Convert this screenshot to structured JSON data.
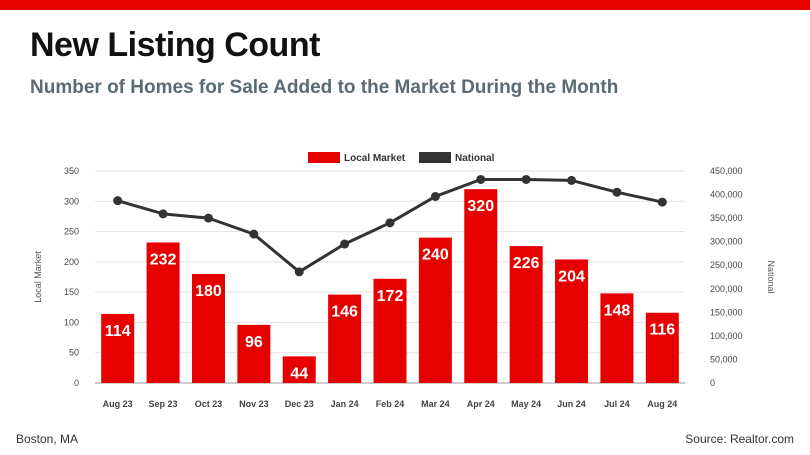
{
  "header": {
    "title": "New Listing Count",
    "subtitle": "Number of Homes for Sale Added to the Market During the Month"
  },
  "footer": {
    "location": "Boston, MA",
    "source": "Source: Realtor.com"
  },
  "colors": {
    "accent": "#e60000",
    "bar": "#e60000",
    "line": "#333333",
    "subtitle": "#5a6b73"
  },
  "chart_data": {
    "type": "bar",
    "categories": [
      "Aug 23",
      "Sep 23",
      "Oct 23",
      "Nov 23",
      "Dec 23",
      "Jan 24",
      "Feb 24",
      "Mar 24",
      "Apr 24",
      "May 24",
      "Jun 24",
      "Jul 24",
      "Aug 24"
    ],
    "series": [
      {
        "name": "Local Market",
        "type": "bar",
        "axis": "left",
        "values": [
          114,
          232,
          180,
          96,
          44,
          146,
          172,
          240,
          320,
          226,
          204,
          148,
          116
        ]
      },
      {
        "name": "National",
        "type": "line",
        "axis": "right",
        "values": [
          387000,
          359000,
          350000,
          316000,
          236000,
          295000,
          340000,
          396000,
          432000,
          432000,
          430000,
          405000,
          384000
        ]
      }
    ],
    "ylabel": "Local Market",
    "y2label": "National",
    "ylim": [
      0,
      350
    ],
    "y2lim": [
      0,
      450000
    ],
    "yticks": [
      "0",
      "50",
      "100",
      "150",
      "200",
      "250",
      "300",
      "350"
    ],
    "y2ticks": [
      "0",
      "50,000",
      "100,000",
      "150,000",
      "200,000",
      "250,000",
      "300,000",
      "350,000",
      "400,000",
      "450,000"
    ],
    "legend_position": "top-center",
    "data_labels": true
  }
}
